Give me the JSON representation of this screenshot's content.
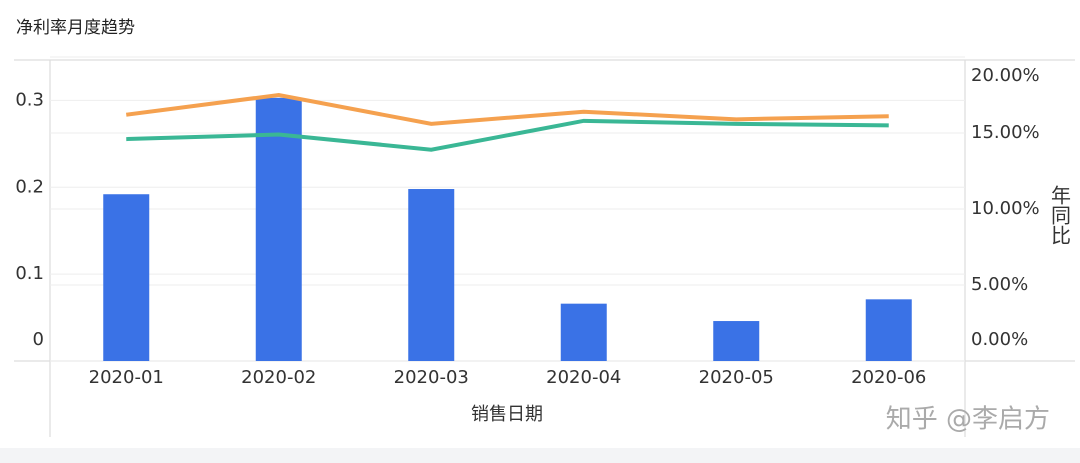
{
  "chart_data": {
    "type": "bar",
    "title": "净利率月度趋势",
    "categories": [
      "2020-01",
      "2020-02",
      "2020-03",
      "2020-04",
      "2020-05",
      "2020-06"
    ],
    "x_label": "销售日期",
    "y2_label": "年同比",
    "series": [
      {
        "type": "bar",
        "color": "#3a72e6",
        "values": [
          0.192,
          0.303,
          0.198,
          0.066,
          0.046,
          0.071
        ]
      },
      {
        "type": "line",
        "axis": "y2",
        "color": "#f5a14f",
        "values": [
          16.2,
          17.5,
          15.6,
          16.4,
          15.9,
          16.1
        ]
      },
      {
        "type": "line",
        "axis": "y2",
        "color": "#3ab795",
        "values": [
          14.6,
          14.9,
          13.9,
          15.8,
          15.6,
          15.5
        ]
      }
    ],
    "ylim": [
      0,
      0.35
    ],
    "yticks": [
      0,
      0.1,
      0.2,
      0.3
    ],
    "y2lim": [
      0,
      20
    ],
    "y2ticks": [
      {
        "value": 0,
        "label": "0.00%"
      },
      {
        "value": 5,
        "label": "5.00%"
      },
      {
        "value": 10,
        "label": "10.00%"
      },
      {
        "value": 15,
        "label": "15.00%"
      },
      {
        "value": 20,
        "label": "20.00%"
      }
    ],
    "grid": true,
    "watermark": "知乎 @李启方"
  }
}
